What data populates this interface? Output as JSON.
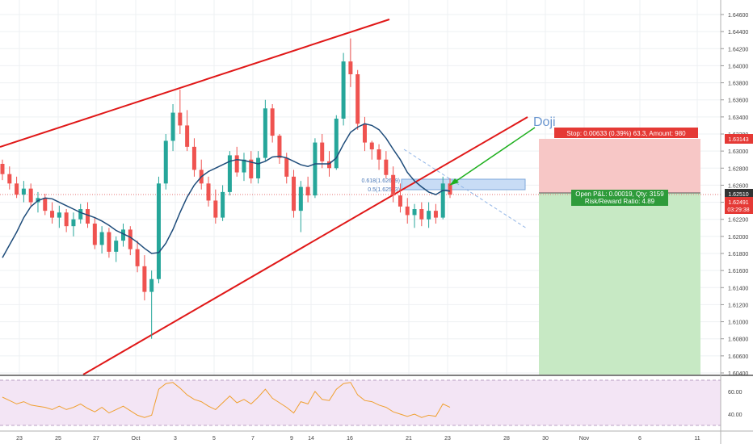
{
  "chart_data": {
    "type": "candlestick",
    "title": "",
    "price_axis": {
      "ticks": [
        "1.64600",
        "1.64400",
        "1.64200",
        "1.64000",
        "1.63800",
        "1.63600",
        "1.63400",
        "1.63200",
        "1.63000",
        "1.62800",
        "1.62600",
        "1.62400",
        "1.62200",
        "1.62000",
        "1.61800",
        "1.61600",
        "1.61400",
        "1.61200",
        "1.61000",
        "1.60800",
        "1.60600",
        "1.60400"
      ],
      "range": [
        1.604,
        1.647
      ]
    },
    "time_axis": {
      "labels": [
        "23",
        "25",
        "27",
        "Oct",
        "3",
        "5",
        "7",
        "9",
        "14",
        "16",
        "21",
        "23",
        "28",
        "30",
        "Nov",
        "6",
        "11"
      ]
    },
    "price_labels": {
      "stop": "1.63143",
      "current": "1.62510",
      "last": "1.62491",
      "countdown": "03:29:38"
    },
    "candles": [
      [
        1.6285,
        1.629,
        1.6266,
        1.6273
      ],
      [
        1.6273,
        1.6282,
        1.6255,
        1.6262
      ],
      [
        1.6262,
        1.627,
        1.6245,
        1.6249
      ],
      [
        1.6249,
        1.6265,
        1.624,
        1.6256
      ],
      [
        1.6256,
        1.6262,
        1.6236,
        1.624
      ],
      [
        1.624,
        1.6252,
        1.6228,
        1.6245
      ],
      [
        1.6245,
        1.625,
        1.6225,
        1.623
      ],
      [
        1.623,
        1.624,
        1.6215,
        1.6222
      ],
      [
        1.6222,
        1.6236,
        1.621,
        1.6228
      ],
      [
        1.6228,
        1.6232,
        1.6205,
        1.6212
      ],
      [
        1.6212,
        1.6228,
        1.62,
        1.622
      ],
      [
        1.622,
        1.6238,
        1.6215,
        1.6232
      ],
      [
        1.6232,
        1.624,
        1.621,
        1.6215
      ],
      [
        1.6215,
        1.6222,
        1.6185,
        1.619
      ],
      [
        1.619,
        1.6212,
        1.618,
        1.6205
      ],
      [
        1.6205,
        1.621,
        1.6175,
        1.6182
      ],
      [
        1.6182,
        1.62,
        1.617,
        1.6195
      ],
      [
        1.6195,
        1.6215,
        1.6188,
        1.6208
      ],
      [
        1.6208,
        1.6212,
        1.6178,
        1.6185
      ],
      [
        1.6185,
        1.6195,
        1.6158,
        1.6165
      ],
      [
        1.6165,
        1.6178,
        1.6125,
        1.6135
      ],
      [
        1.6135,
        1.616,
        1.608,
        1.615
      ],
      [
        1.615,
        1.627,
        1.6145,
        1.6262
      ],
      [
        1.6262,
        1.632,
        1.6255,
        1.6312
      ],
      [
        1.6312,
        1.6355,
        1.63,
        1.6345
      ],
      [
        1.6345,
        1.6372,
        1.632,
        1.633
      ],
      [
        1.633,
        1.6348,
        1.63,
        1.6305
      ],
      [
        1.6305,
        1.6315,
        1.627,
        1.6278
      ],
      [
        1.6278,
        1.629,
        1.6255,
        1.6262
      ],
      [
        1.6262,
        1.627,
        1.6235,
        1.6242
      ],
      [
        1.6242,
        1.6255,
        1.6215,
        1.6222
      ],
      [
        1.6222,
        1.626,
        1.6218,
        1.6252
      ],
      [
        1.6252,
        1.63,
        1.6248,
        1.6295
      ],
      [
        1.6295,
        1.6305,
        1.627,
        1.6275
      ],
      [
        1.6275,
        1.6298,
        1.6265,
        1.629
      ],
      [
        1.629,
        1.63,
        1.6262,
        1.6268
      ],
      [
        1.6268,
        1.63,
        1.6262,
        1.6292
      ],
      [
        1.6292,
        1.636,
        1.6288,
        1.635
      ],
      [
        1.635,
        1.6355,
        1.631,
        1.6318
      ],
      [
        1.6318,
        1.632,
        1.6285,
        1.6292
      ],
      [
        1.6292,
        1.6298,
        1.6262,
        1.627
      ],
      [
        1.627,
        1.6278,
        1.6222,
        1.623
      ],
      [
        1.623,
        1.6265,
        1.6205,
        1.6258
      ],
      [
        1.6258,
        1.627,
        1.624,
        1.6248
      ],
      [
        1.6248,
        1.6315,
        1.6245,
        1.631
      ],
      [
        1.631,
        1.632,
        1.628,
        1.6288
      ],
      [
        1.6288,
        1.63,
        1.627,
        1.628
      ],
      [
        1.628,
        1.6342,
        1.6278,
        1.6338
      ],
      [
        1.6338,
        1.6415,
        1.633,
        1.6405
      ],
      [
        1.6405,
        1.6432,
        1.6375,
        1.639
      ],
      [
        1.639,
        1.6395,
        1.6325,
        1.6332
      ],
      [
        1.6332,
        1.634,
        1.63,
        1.631
      ],
      [
        1.631,
        1.6312,
        1.629,
        1.6302
      ],
      [
        1.6302,
        1.6308,
        1.6278,
        1.629
      ],
      [
        1.629,
        1.63,
        1.6268,
        1.6272
      ],
      [
        1.6272,
        1.6282,
        1.624,
        1.6248
      ],
      [
        1.6248,
        1.6262,
        1.6228,
        1.6235
      ],
      [
        1.6235,
        1.6245,
        1.6215,
        1.6225
      ],
      [
        1.6225,
        1.6238,
        1.621,
        1.6232
      ],
      [
        1.6232,
        1.624,
        1.6212,
        1.622
      ],
      [
        1.622,
        1.624,
        1.621,
        1.623
      ],
      [
        1.623,
        1.6238,
        1.6215,
        1.6222
      ],
      [
        1.6222,
        1.627,
        1.622,
        1.6262
      ],
      [
        1.6262,
        1.6268,
        1.6245,
        1.6249
      ]
    ],
    "moving_average": [
      1.6175,
      1.619,
      1.6205,
      1.6222,
      1.6235,
      1.6242,
      1.6245,
      1.6244,
      1.624,
      1.6236,
      1.6232,
      1.6228,
      1.6225,
      1.6222,
      1.6218,
      1.6213,
      1.6207,
      1.6203,
      1.6199,
      1.6193,
      1.6186,
      1.618,
      1.6181,
      1.6192,
      1.6208,
      1.6228,
      1.6246,
      1.626,
      1.627,
      1.6276,
      1.628,
      1.6284,
      1.6288,
      1.629,
      1.6289,
      1.6287,
      1.6285,
      1.6288,
      1.6293,
      1.6294,
      1.6292,
      1.6288,
      1.6284,
      1.6282,
      1.6285,
      1.6285,
      1.6285,
      1.6292,
      1.6308,
      1.6322,
      1.6328,
      1.6332,
      1.633,
      1.6325,
      1.6315,
      1.6302,
      1.629,
      1.6275,
      1.6265,
      1.6258,
      1.6252,
      1.6249,
      1.6254,
      1.6253
    ],
    "rsi": {
      "ticks": [
        "60.00",
        "40.00"
      ],
      "range": [
        30,
        70
      ],
      "values": [
        55,
        52,
        49,
        51,
        48,
        47,
        46,
        44,
        47,
        44,
        46,
        49,
        45,
        42,
        46,
        41,
        44,
        47,
        43,
        39,
        37,
        39,
        62,
        67,
        68,
        63,
        57,
        53,
        51,
        47,
        44,
        50,
        56,
        50,
        53,
        49,
        55,
        62,
        54,
        50,
        46,
        41,
        51,
        49,
        60,
        53,
        52,
        62,
        67,
        68,
        57,
        52,
        51,
        48,
        46,
        42,
        40,
        38,
        40,
        37,
        39,
        38,
        49,
        46
      ]
    },
    "annotations": {
      "doji": "Doji",
      "fib_618": "0.618(1.62669)",
      "fib_5": "0.5(1.62553)",
      "stop_label": "Stop: 0.00633 (0.39%) 63.3, Amount: 980",
      "pnl_label": "Open P&L: 0.00019, Qty: 3159",
      "rr_label": "Risk/Reward Ratio: 4.89"
    },
    "colors": {
      "up": "#26a69a",
      "down": "#ef5350",
      "ma": "#1e4c7a",
      "channel": "#e01818",
      "rsi": "#f0a030",
      "arrow": "#1fb01f",
      "doji": "#6a96cf"
    }
  }
}
